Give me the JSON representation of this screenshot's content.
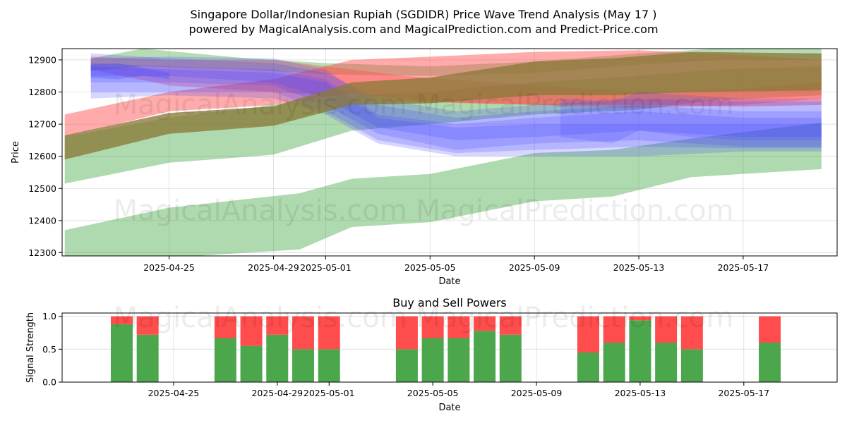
{
  "header": {
    "title_line1": "Singapore Dollar/Indonesian Rupiah (SGDIDR) Price Wave Trend Analysis (May 17 )",
    "title_line2": "powered by MagicalAnalysis.com and MagicalPrediction.com and Predict-Price.com"
  },
  "watermarks": {
    "top_row1": "MagicalAnalysis.com    MagicalPrediction.com",
    "top_row2": "MagicalAnalysis.com    MagicalPrediction.com",
    "bottom_row": "MagicalAnalysis.com    MagicalPrediction.com"
  },
  "chart_data": [
    {
      "type": "area",
      "title": "",
      "xlabel": "Date",
      "ylabel": "Price",
      "xlim": [
        "2025-04-21",
        "2025-05-20"
      ],
      "ylim": [
        12290,
        12935
      ],
      "xticks": [
        "2025-04-25",
        "2025-04-29",
        "2025-05-01",
        "2025-05-05",
        "2025-05-09",
        "2025-05-13",
        "2025-05-17"
      ],
      "yticks": [
        12300,
        12400,
        12500,
        12600,
        12700,
        12800,
        12900
      ],
      "grid": true,
      "colors": {
        "red": "#ff4444",
        "green": "#2e9a2e",
        "blue": "#4444ff",
        "brown": "#8a7a3a"
      },
      "bands": [
        {
          "color": "green",
          "opacity": 0.38,
          "x": [
            "2025-04-21",
            "2025-04-25",
            "2025-04-30",
            "2025-05-02",
            "2025-05-05",
            "2025-05-09",
            "2025-05-12",
            "2025-05-15",
            "2025-05-20"
          ],
          "upper": [
            12370,
            12440,
            12485,
            12530,
            12545,
            12610,
            12620,
            12655,
            12705
          ],
          "lower": [
            12270,
            12285,
            12310,
            12380,
            12395,
            12460,
            12475,
            12535,
            12560
          ]
        },
        {
          "color": "green",
          "opacity": 0.38,
          "x": [
            "2025-04-21",
            "2025-04-25",
            "2025-04-29",
            "2025-05-02",
            "2025-05-05",
            "2025-05-09",
            "2025-05-13",
            "2025-05-16",
            "2025-05-20"
          ],
          "upper": [
            12660,
            12720,
            12760,
            12790,
            12800,
            12830,
            12850,
            12870,
            12880
          ],
          "lower": [
            12515,
            12580,
            12605,
            12680,
            12700,
            12730,
            12745,
            12775,
            12790
          ]
        },
        {
          "color": "green",
          "opacity": 0.35,
          "x": [
            "2025-04-22",
            "2025-04-24",
            "2025-04-28",
            "2025-05-01",
            "2025-05-05",
            "2025-05-09",
            "2025-05-13",
            "2025-05-16",
            "2025-05-20"
          ],
          "upper": [
            12905,
            12935,
            12905,
            12890,
            12880,
            12895,
            12920,
            12935,
            12935
          ],
          "lower": [
            12865,
            12880,
            12870,
            12855,
            12850,
            12860,
            12885,
            12900,
            12900
          ]
        },
        {
          "color": "red",
          "opacity": 0.45,
          "x": [
            "2025-04-21",
            "2025-04-25",
            "2025-04-29",
            "2025-05-02",
            "2025-05-05",
            "2025-05-09",
            "2025-05-13",
            "2025-05-17",
            "2025-05-20"
          ],
          "upper": [
            12730,
            12800,
            12840,
            12900,
            12910,
            12925,
            12930,
            12915,
            12900
          ],
          "lower": [
            12660,
            12740,
            12760,
            12795,
            12770,
            12760,
            12760,
            12755,
            12760
          ]
        },
        {
          "color": "red",
          "opacity": 0.35,
          "x": [
            "2025-04-22",
            "2025-04-25",
            "2025-04-29",
            "2025-05-01",
            "2025-05-04",
            "2025-05-09",
            "2025-05-13",
            "2025-05-17",
            "2025-05-20"
          ],
          "upper": [
            12910,
            12900,
            12900,
            12880,
            12850,
            12820,
            12800,
            12810,
            12830
          ],
          "lower": [
            12870,
            12820,
            12800,
            12790,
            12770,
            12760,
            12750,
            12760,
            12780
          ]
        },
        {
          "color": "blue",
          "opacity": 0.22,
          "x": [
            "2025-04-22",
            "2025-04-25",
            "2025-04-29",
            "2025-05-01",
            "2025-05-03",
            "2025-05-06",
            "2025-05-09",
            "2025-05-13",
            "2025-05-17",
            "2025-05-20"
          ],
          "upper": [
            12905,
            12910,
            12905,
            12870,
            12760,
            12720,
            12740,
            12760,
            12740,
            12740
          ],
          "lower": [
            12830,
            12830,
            12820,
            12760,
            12670,
            12620,
            12640,
            12650,
            12630,
            12630
          ]
        },
        {
          "color": "blue",
          "opacity": 0.22,
          "x": [
            "2025-04-22",
            "2025-04-25",
            "2025-04-29",
            "2025-05-01",
            "2025-05-03",
            "2025-05-06",
            "2025-05-09",
            "2025-05-13",
            "2025-05-17",
            "2025-05-20"
          ],
          "upper": [
            12890,
            12880,
            12870,
            12840,
            12730,
            12700,
            12720,
            12740,
            12720,
            12720
          ],
          "lower": [
            12800,
            12800,
            12800,
            12740,
            12650,
            12610,
            12620,
            12630,
            12625,
            12625
          ]
        },
        {
          "color": "blue",
          "opacity": 0.22,
          "x": [
            "2025-04-22",
            "2025-04-25",
            "2025-04-29",
            "2025-05-01",
            "2025-05-03",
            "2025-05-06",
            "2025-05-09",
            "2025-05-13",
            "2025-05-17",
            "2025-05-20"
          ],
          "upper": [
            12920,
            12905,
            12890,
            12860,
            12780,
            12740,
            12760,
            12780,
            12770,
            12770
          ],
          "lower": [
            12850,
            12850,
            12830,
            12780,
            12690,
            12650,
            12660,
            12680,
            12660,
            12660
          ]
        },
        {
          "color": "blue",
          "opacity": 0.22,
          "x": [
            "2025-04-22",
            "2025-04-25",
            "2025-04-29",
            "2025-05-01",
            "2025-05-03",
            "2025-05-06",
            "2025-05-09",
            "2025-05-13",
            "2025-05-17",
            "2025-05-20"
          ],
          "upper": [
            12880,
            12870,
            12860,
            12830,
            12720,
            12690,
            12700,
            12700,
            12700,
            12700
          ],
          "lower": [
            12780,
            12790,
            12780,
            12730,
            12640,
            12600,
            12600,
            12600,
            12615,
            12615
          ]
        },
        {
          "color": "blue",
          "opacity": 0.3,
          "x": [
            "2025-04-22",
            "2025-04-23",
            "2025-04-24",
            "2025-04-25"
          ],
          "upper": [
            12885,
            12890,
            12875,
            12860
          ],
          "lower": [
            12845,
            12840,
            12850,
            12840
          ]
        },
        {
          "color": "brown",
          "opacity": 0.78,
          "x": [
            "2025-04-21",
            "2025-04-25",
            "2025-04-29",
            "2025-05-02",
            "2025-05-05",
            "2025-05-09",
            "2025-05-12",
            "2025-05-15",
            "2025-05-20"
          ],
          "upper": [
            12665,
            12735,
            12755,
            12830,
            12845,
            12895,
            12905,
            12925,
            12920
          ],
          "lower": [
            12590,
            12670,
            12695,
            12760,
            12765,
            12790,
            12790,
            12800,
            12805
          ]
        },
        {
          "color": "blue",
          "opacity": 0.2,
          "x": [
            "2025-05-10",
            "2025-05-12",
            "2025-05-13",
            "2025-05-15",
            "2025-05-17",
            "2025-05-20"
          ],
          "upper": [
            12780,
            12770,
            12800,
            12790,
            12780,
            12780
          ],
          "lower": [
            12660,
            12640,
            12680,
            12660,
            12650,
            12650
          ]
        }
      ]
    },
    {
      "type": "bar",
      "title": "Buy and Sell Powers",
      "xlabel": "Date",
      "ylabel": "Signal Strength",
      "ylim": [
        0,
        1.05
      ],
      "xticks": [
        "2025-04-25",
        "2025-04-29",
        "2025-05-01",
        "2025-05-05",
        "2025-05-09",
        "2025-05-13",
        "2025-05-17"
      ],
      "yticks": [
        "0.0",
        "0.5",
        "1.0"
      ],
      "colors": {
        "buy": "#4ca64c",
        "sell": "#ff4c4c"
      },
      "x": [
        "2025-04-23",
        "2025-04-24",
        "2025-04-27",
        "2025-04-28",
        "2025-04-29",
        "2025-04-30",
        "2025-05-01",
        "2025-05-04",
        "2025-05-05",
        "2025-05-06",
        "2025-05-07",
        "2025-05-08",
        "2025-05-11",
        "2025-05-12",
        "2025-05-13",
        "2025-05-14",
        "2025-05-15",
        "2025-05-18"
      ],
      "series": [
        {
          "values": [
            0.88,
            0.72,
            0.67,
            0.55,
            0.72,
            0.5,
            0.5,
            0.5,
            0.67,
            0.67,
            0.78,
            0.72,
            0.45,
            0.6,
            0.94,
            0.6,
            0.5,
            0.6
          ]
        },
        {
          "values": [
            0.12,
            0.28,
            0.33,
            0.45,
            0.28,
            0.5,
            0.5,
            0.5,
            0.33,
            0.33,
            0.22,
            0.28,
            0.55,
            0.4,
            0.06,
            0.4,
            0.5,
            0.4
          ]
        }
      ]
    }
  ]
}
